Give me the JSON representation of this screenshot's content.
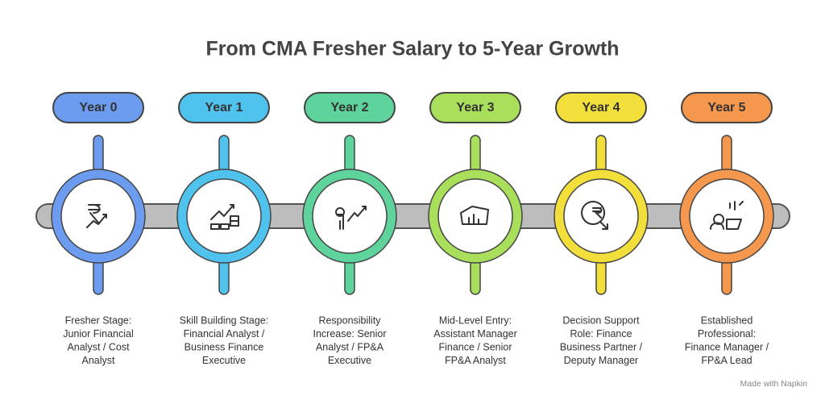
{
  "title": "From CMA Fresher Salary to 5-Year Growth",
  "stages": [
    {
      "label": "Year 0",
      "description": [
        "Fresher Stage:",
        "Junior Financial",
        "Analyst / Cost",
        "Analyst"
      ]
    },
    {
      "label": "Year 1",
      "description": [
        "Skill Building Stage:",
        "Financial Analyst /",
        "Business Finance",
        "Executive"
      ]
    },
    {
      "label": "Year 2",
      "description": [
        "Responsibility",
        "Increase: Senior",
        "Analyst / FP&A",
        "Executive"
      ]
    },
    {
      "label": "Year 3",
      "description": [
        "Mid-Level Entry:",
        "Assistant Manager",
        "Finance / Senior",
        "FP&A Analyst"
      ]
    },
    {
      "label": "Year 4",
      "description": [
        "Decision Support",
        "Role: Finance",
        "Business Partner /",
        "Deputy Manager"
      ]
    },
    {
      "label": "Year 5",
      "description": [
        "Established",
        "Professional:",
        "Finance Manager /",
        "FP&A Lead"
      ]
    }
  ],
  "footer": "Made with Napkin"
}
